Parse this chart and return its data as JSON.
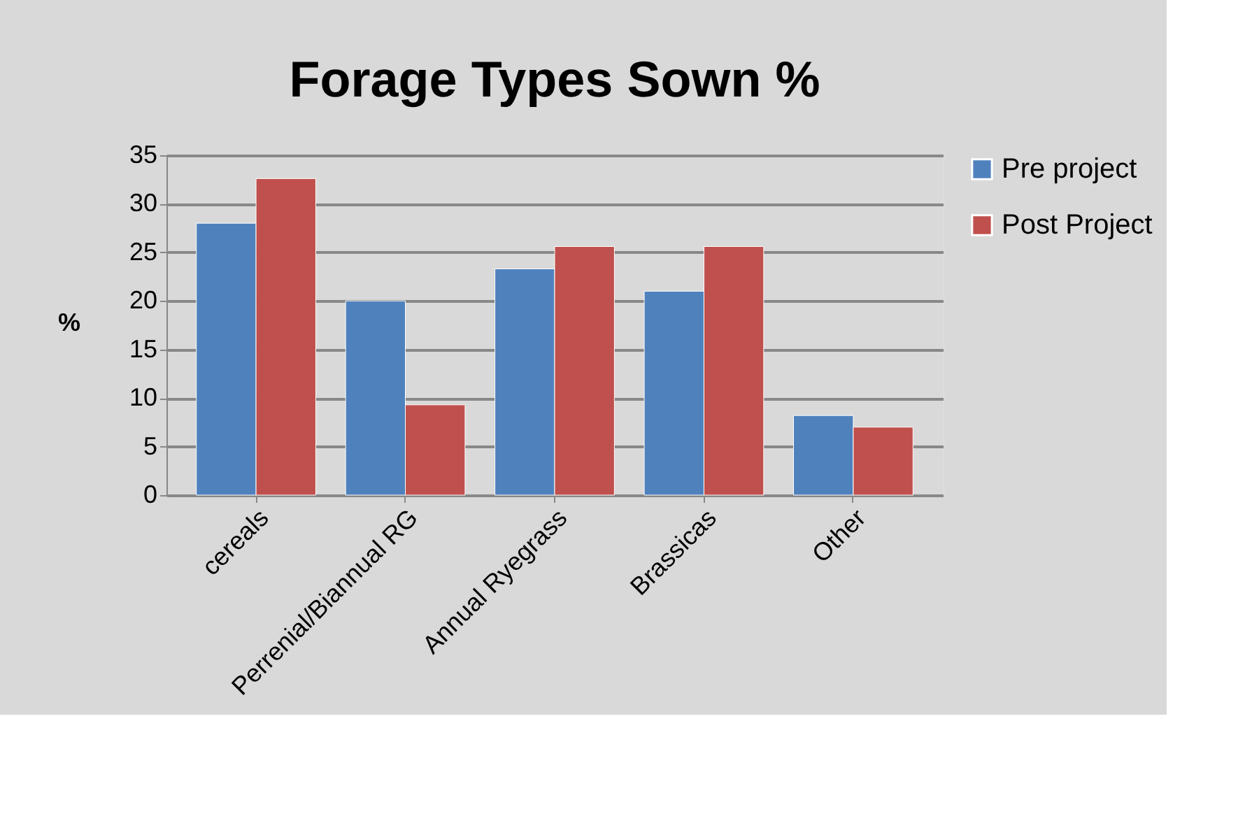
{
  "chart_data": {
    "type": "bar",
    "title": "Forage Types Sown %",
    "ylabel": "%",
    "categories": [
      "cereals",
      "Perrenial/Biannual RG",
      "Annual Ryegrass",
      "Brassicas",
      "Other"
    ],
    "series": [
      {
        "name": "Pre project",
        "color": "#4f81bd",
        "values": [
          28.0,
          20.0,
          23.3,
          21.0,
          8.2
        ]
      },
      {
        "name": "Post Project",
        "color": "#c0504d",
        "values": [
          32.6,
          9.3,
          25.6,
          25.6,
          7.0
        ]
      }
    ],
    "ylim": [
      0,
      35
    ],
    "yticks": [
      0,
      5,
      10,
      15,
      20,
      25,
      30,
      35
    ],
    "grid": "y",
    "legend": "right"
  }
}
